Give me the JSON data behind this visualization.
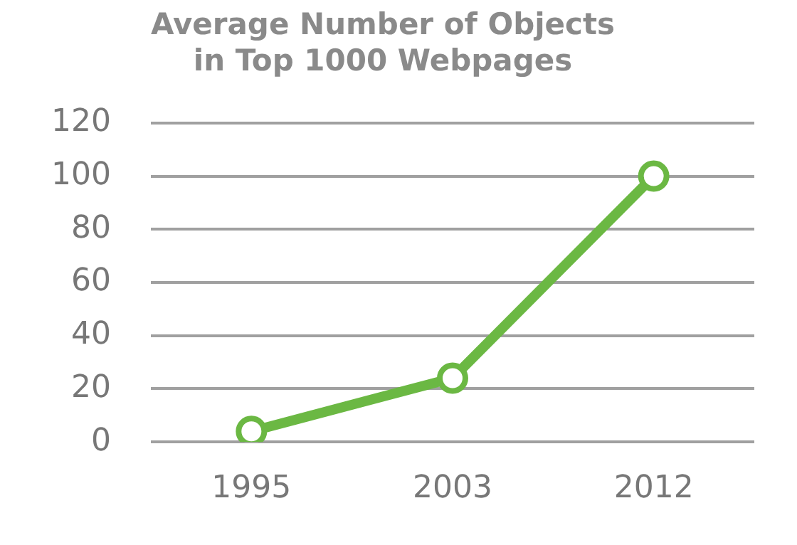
{
  "chart_data": {
    "type": "line",
    "title": [
      "Average Number of Objects",
      "in Top 1000 Webpages"
    ],
    "categories": [
      "1995",
      "2003",
      "2012"
    ],
    "series": [
      {
        "color": "#6bb843",
        "values": [
          4,
          24,
          100
        ]
      }
    ],
    "ylim": [
      0,
      120
    ],
    "yticks": [
      0,
      20,
      40,
      60,
      80,
      100,
      120
    ],
    "grid": "y",
    "legend": false,
    "marker": "circle",
    "line_style": "solid"
  }
}
